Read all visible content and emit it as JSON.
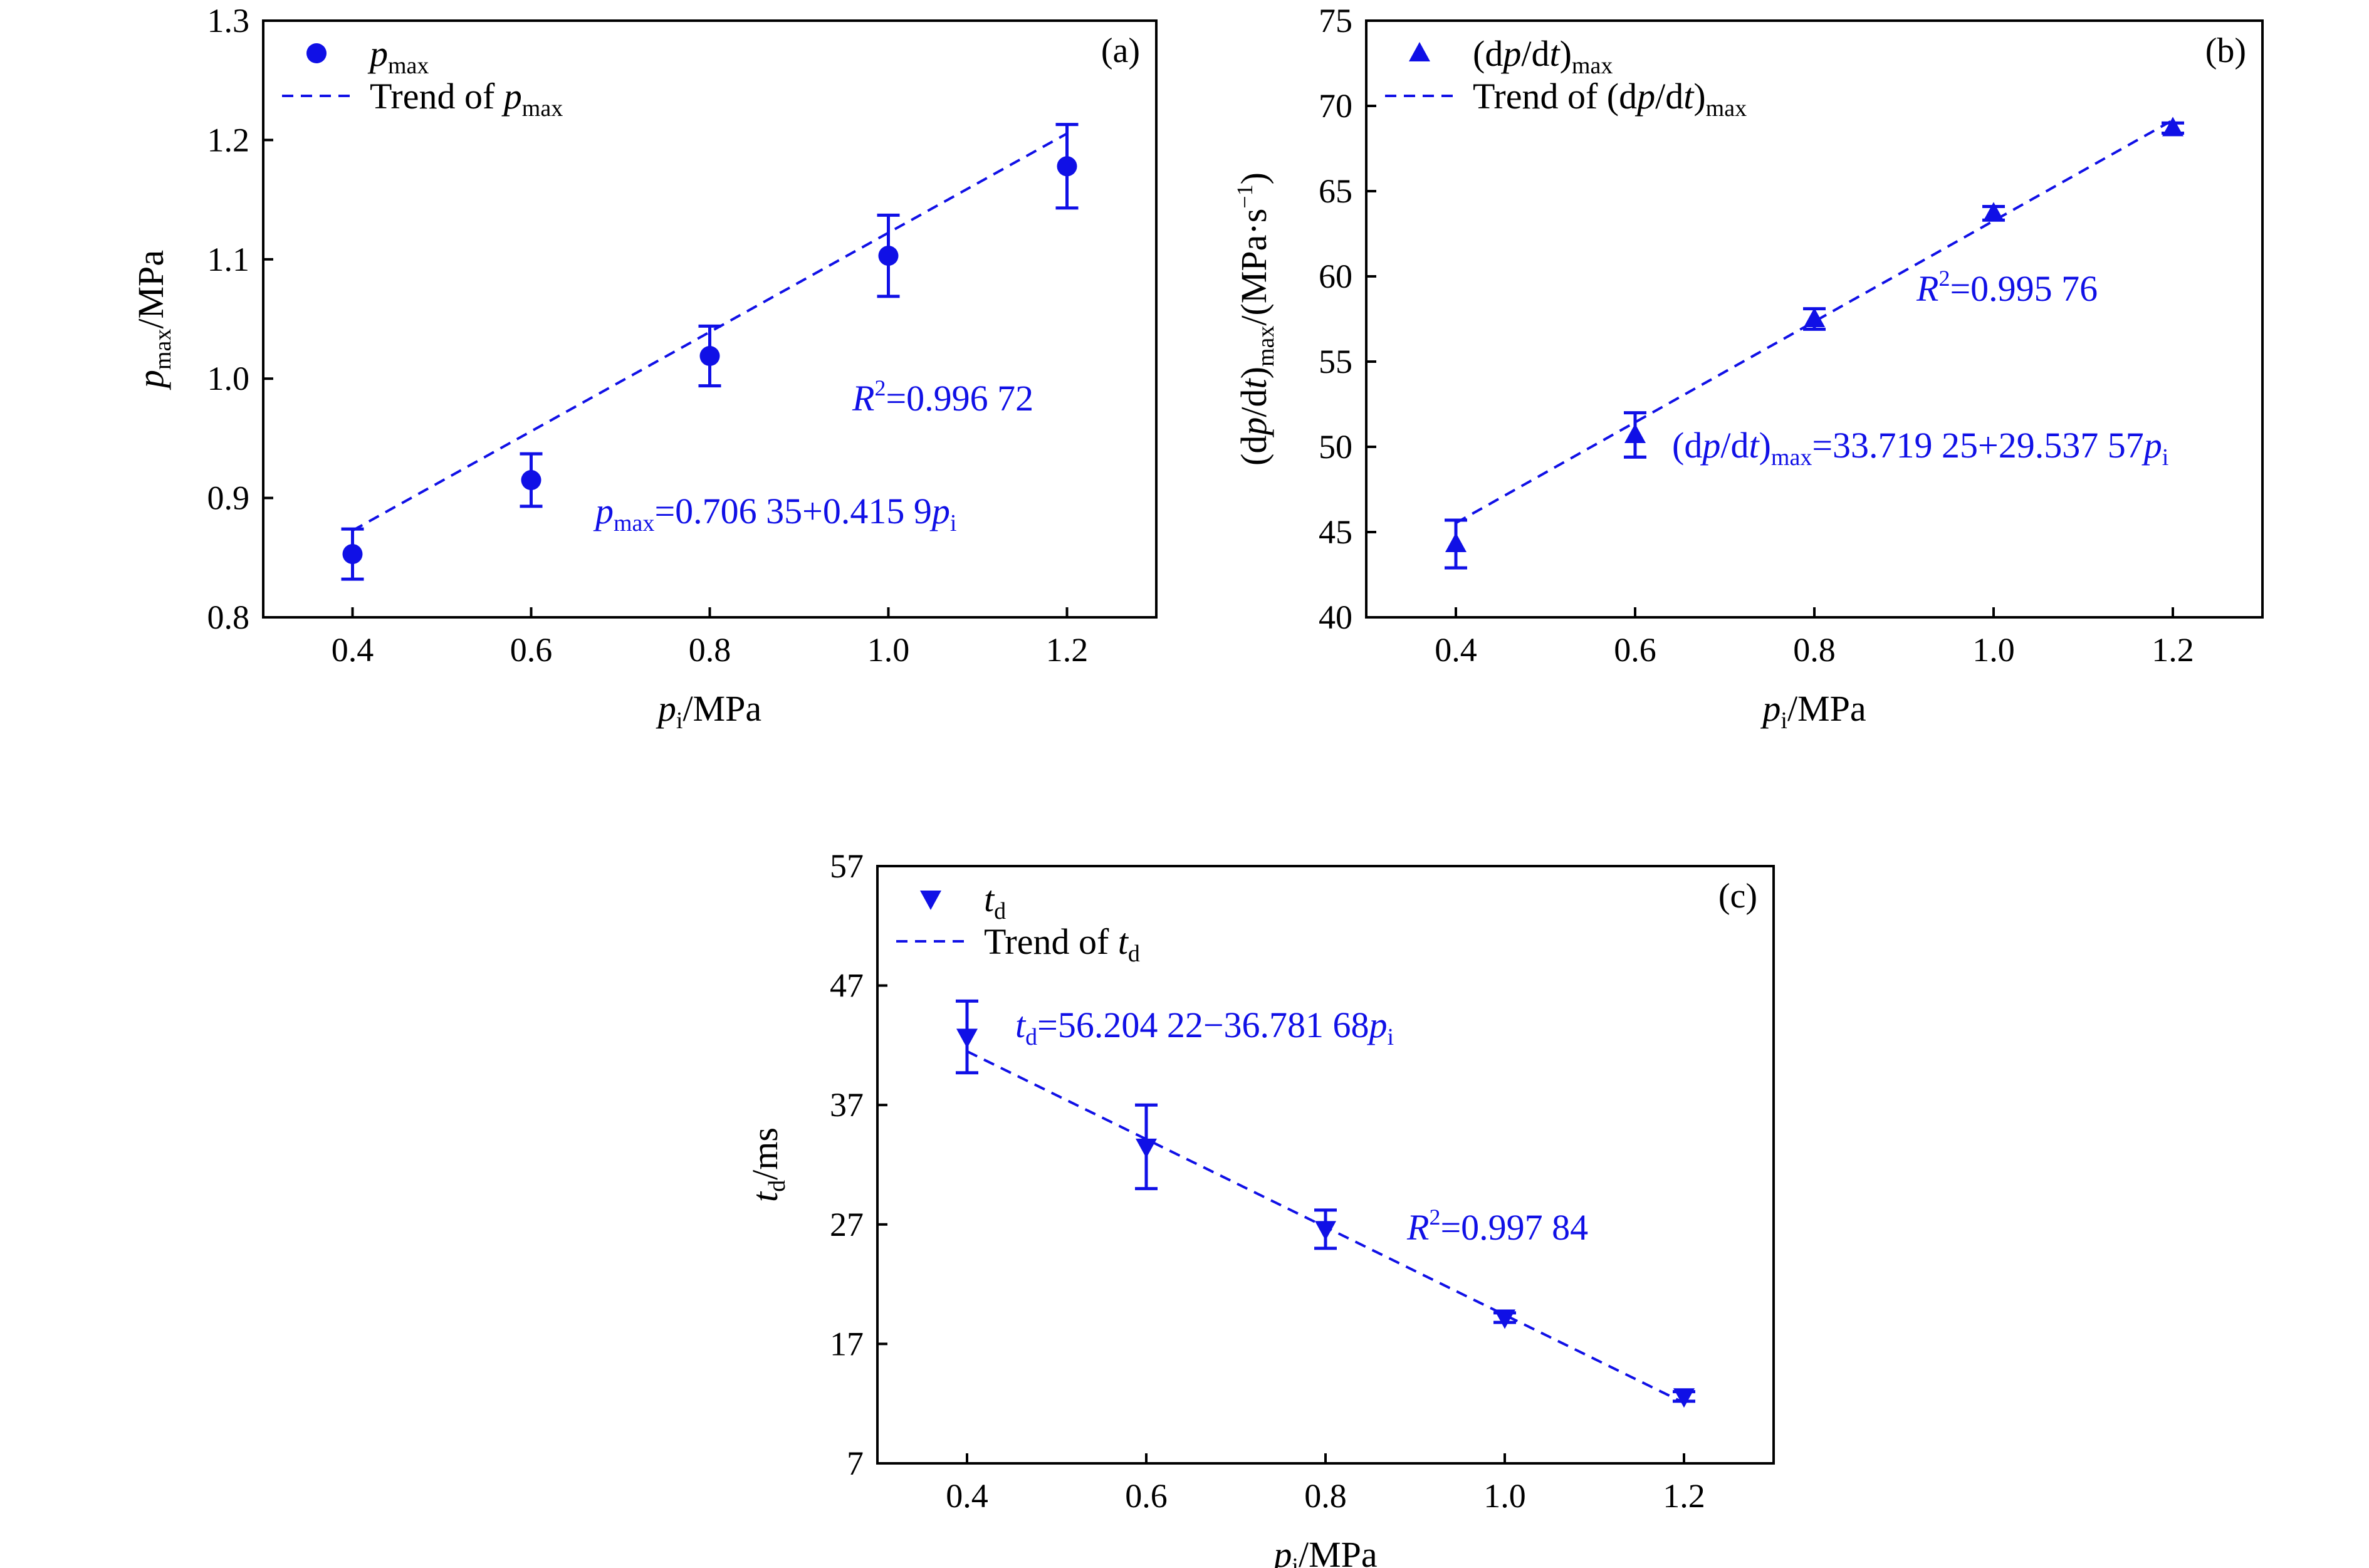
{
  "colors": {
    "series": "#1010e6",
    "axes": "#000000"
  },
  "chart_data": [
    {
      "panel": "(a)",
      "type": "scatter",
      "marker": "circle",
      "x": [
        0.4,
        0.6,
        0.8,
        1.0,
        1.2
      ],
      "values": [
        0.853,
        0.915,
        1.019,
        1.103,
        1.178
      ],
      "errors": [
        0.021,
        0.022,
        0.025,
        0.034,
        0.035
      ],
      "trend": {
        "intercept": 0.70635,
        "slope": 0.4159
      },
      "xlim": [
        0.3,
        1.3
      ],
      "ylim": [
        0.8,
        1.3
      ],
      "xticks": [
        "0.4",
        "0.6",
        "0.8",
        "1.0",
        "1.2"
      ],
      "yticks": [
        "0.8",
        "0.9",
        "1.0",
        "1.1",
        "1.2",
        "1.3"
      ],
      "xlabel": {
        "var": "p",
        "sub": "i",
        "unit": "/MPa"
      },
      "ylabel": {
        "var": "p",
        "sub": "max",
        "unit": "/MPa"
      },
      "legend": {
        "markerLabel": {
          "var": "p",
          "sub": "max"
        },
        "trendLabel": {
          "prefix": "Trend of ",
          "var": "p",
          "sub": "max"
        }
      },
      "equation": {
        "lhs_var": "p",
        "lhs_sub": "max",
        "rhs": "=0.706 35+0.415 9",
        "var": "p",
        "var_sub": "i"
      },
      "r2": {
        "label": "R",
        "sup": "2",
        "value": "=0.996 72"
      }
    },
    {
      "panel": "(b)",
      "type": "scatter",
      "marker": "triangle-up",
      "x": [
        0.4,
        0.6,
        0.8,
        1.0,
        1.2
      ],
      "values": [
        44.3,
        50.7,
        57.5,
        63.7,
        68.7
      ],
      "errors": [
        1.4,
        1.3,
        0.6,
        0.4,
        0.3
      ],
      "trend": {
        "intercept": 33.71925,
        "slope": 29.53757
      },
      "xlim": [
        0.3,
        1.3
      ],
      "ylim": [
        40,
        75
      ],
      "xticks": [
        "0.4",
        "0.6",
        "0.8",
        "1.0",
        "1.2"
      ],
      "yticks": [
        "40",
        "45",
        "50",
        "55",
        "60",
        "65",
        "70",
        "75"
      ],
      "xlabel": {
        "var": "p",
        "sub": "i",
        "unit": "/MPa"
      },
      "ylabel": {
        "text": "(dp/dt)max/(MPa·s−1)"
      },
      "legend": {
        "markerLabel": {
          "text": "(dp/dt)max"
        },
        "trendLabel": {
          "text": "Trend of (dp/dt)max"
        }
      },
      "equation": {
        "text": "(dp/dt)max=33.719 25+29.537 57pi"
      },
      "r2": {
        "label": "R",
        "sup": "2",
        "value": "=0.995 76"
      }
    },
    {
      "panel": "(c)",
      "type": "scatter",
      "marker": "triangle-down",
      "x": [
        0.4,
        0.6,
        0.8,
        1.0,
        1.2
      ],
      "values": [
        42.7,
        33.5,
        26.6,
        19.2,
        12.6
      ],
      "errors": [
        3.0,
        3.5,
        1.6,
        0.4,
        0.4
      ],
      "trend": {
        "intercept": 56.20422,
        "slope": -36.78168
      },
      "xlim": [
        0.3,
        1.3
      ],
      "ylim": [
        7,
        57
      ],
      "xticks": [
        "0.4",
        "0.6",
        "0.8",
        "1.0",
        "1.2"
      ],
      "yticks": [
        "7",
        "17",
        "27",
        "37",
        "47",
        "57"
      ],
      "xlabel": {
        "var": "p",
        "sub": "i",
        "unit": "/MPa"
      },
      "ylabel": {
        "var": "t",
        "sub": "d",
        "unit": "/ms"
      },
      "legend": {
        "markerLabel": {
          "var": "t",
          "sub": "d"
        },
        "trendLabel": {
          "prefix": "Trend of ",
          "var": "t",
          "sub": "d"
        }
      },
      "equation": {
        "text": "td=56.204 22−36.781 68pi"
      },
      "r2": {
        "label": "R",
        "sup": "2",
        "value": "=0.997 84"
      }
    }
  ]
}
